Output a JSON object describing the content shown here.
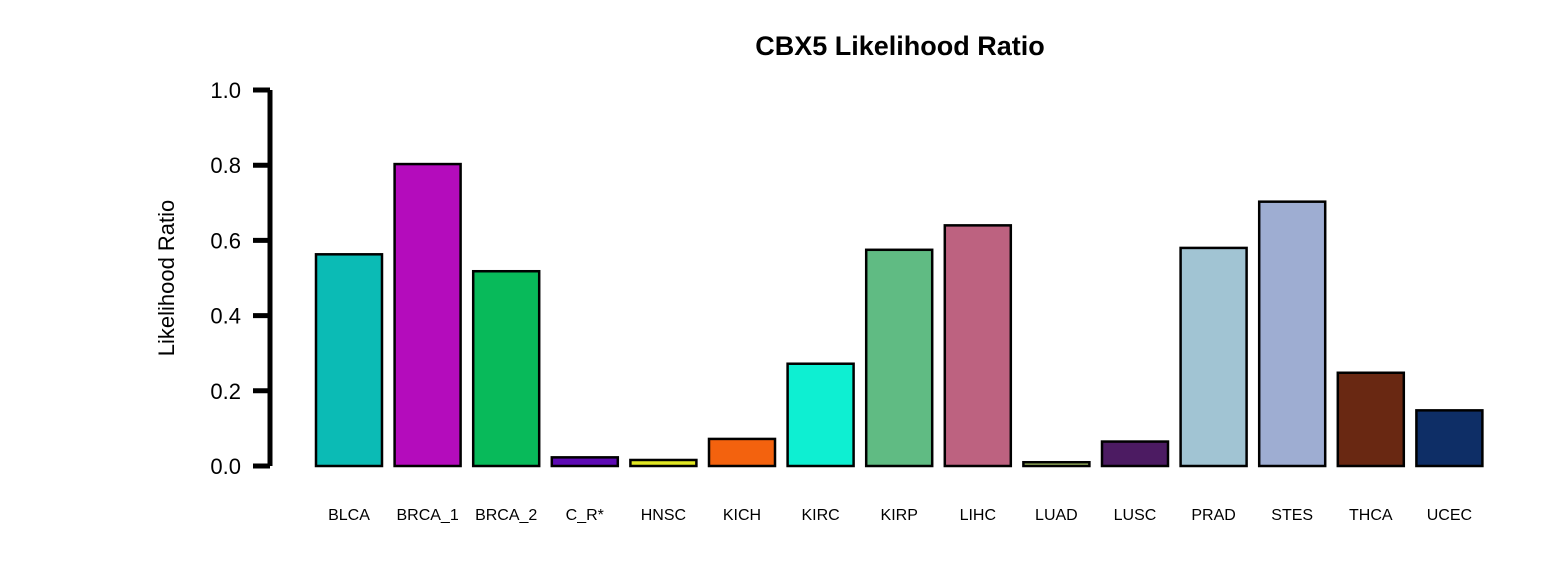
{
  "chart_data": {
    "type": "bar",
    "title": "CBX5 Likelihood Ratio",
    "xlabel": "",
    "ylabel": "Likelihood Ratio",
    "ylim": [
      0,
      1.0
    ],
    "yticks": [
      "0.0",
      "0.2",
      "0.4",
      "0.6",
      "0.8",
      "1.0"
    ],
    "grid": false,
    "legend": "none",
    "categories": [
      "BLCA",
      "BRCA_1",
      "BRCA_2",
      "C_R*",
      "HNSC",
      "KICH",
      "KIRC",
      "KIRP",
      "LIHC",
      "LUAD",
      "LUSC",
      "PRAD",
      "STES",
      "THCA",
      "UCEC"
    ],
    "values": [
      0.563,
      0.803,
      0.518,
      0.023,
      0.016,
      0.072,
      0.272,
      0.575,
      0.64,
      0.01,
      0.065,
      0.58,
      0.703,
      0.248,
      0.148
    ],
    "colors": [
      "#0BBBB5",
      "#B40CBC",
      "#08BA5A",
      "#5E0BB4",
      "#E1E723",
      "#F3620E",
      "#0EEFD2",
      "#60BB83",
      "#BD6280",
      "#A1BB63",
      "#4C1B62",
      "#A1C4D3",
      "#9EADD2",
      "#692812",
      "#0E2E66"
    ]
  }
}
